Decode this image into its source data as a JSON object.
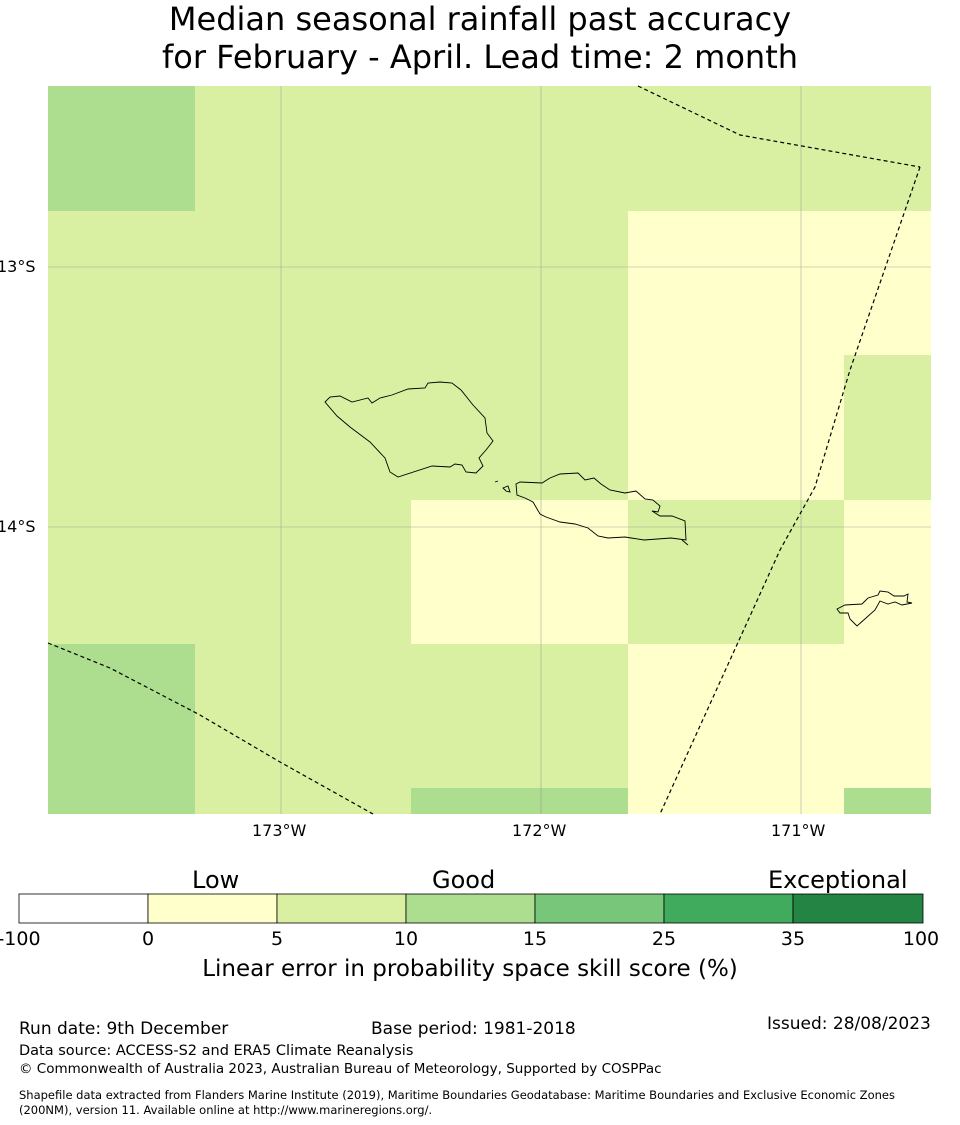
{
  "title": {
    "line1": "Median seasonal rainfall past accuracy",
    "line2": "for February - April. Lead time: 2 month"
  },
  "map": {
    "lat_labels": [
      "13°S",
      "14°S"
    ],
    "lon_labels": [
      "173°W",
      "172°W",
      "171°W"
    ],
    "features": [
      "skill-grid",
      "gridlines",
      "samoa-coastlines",
      "maritime-boundaries"
    ]
  },
  "colorbar": {
    "categories": [
      "Low",
      "Good",
      "Exceptional"
    ],
    "ticks": [
      "-100",
      "0",
      "5",
      "10",
      "15",
      "25",
      "35",
      "100"
    ],
    "colors": [
      "#ffffff",
      "#ffffcc",
      "#d9f0a3",
      "#addd8e",
      "#78c679",
      "#41ab5d",
      "#238443"
    ],
    "label": "Linear error in probability space skill score (%)"
  },
  "footer": {
    "run_date": "Run date: 9th December",
    "base_period": "Base period: 1981-2018",
    "issued": "Issued: 28/08/2023",
    "data_source": "Data source: ACCESS-S2 and ERA5 Climate Reanalysis",
    "copyright": "© Commonwealth of Australia 2023, Australian Bureau of Meteorology, Supported by COSPPac",
    "shapefile_line1": "Shapefile data extracted from Flanders Marine Institute (2019), Maritime Boundaries Geodatabase: Maritime Boundaries and Exclusive Economic Zones",
    "shapefile_line2": "(200NM), version 11. Available online at http://www.marineregions.org/."
  }
}
